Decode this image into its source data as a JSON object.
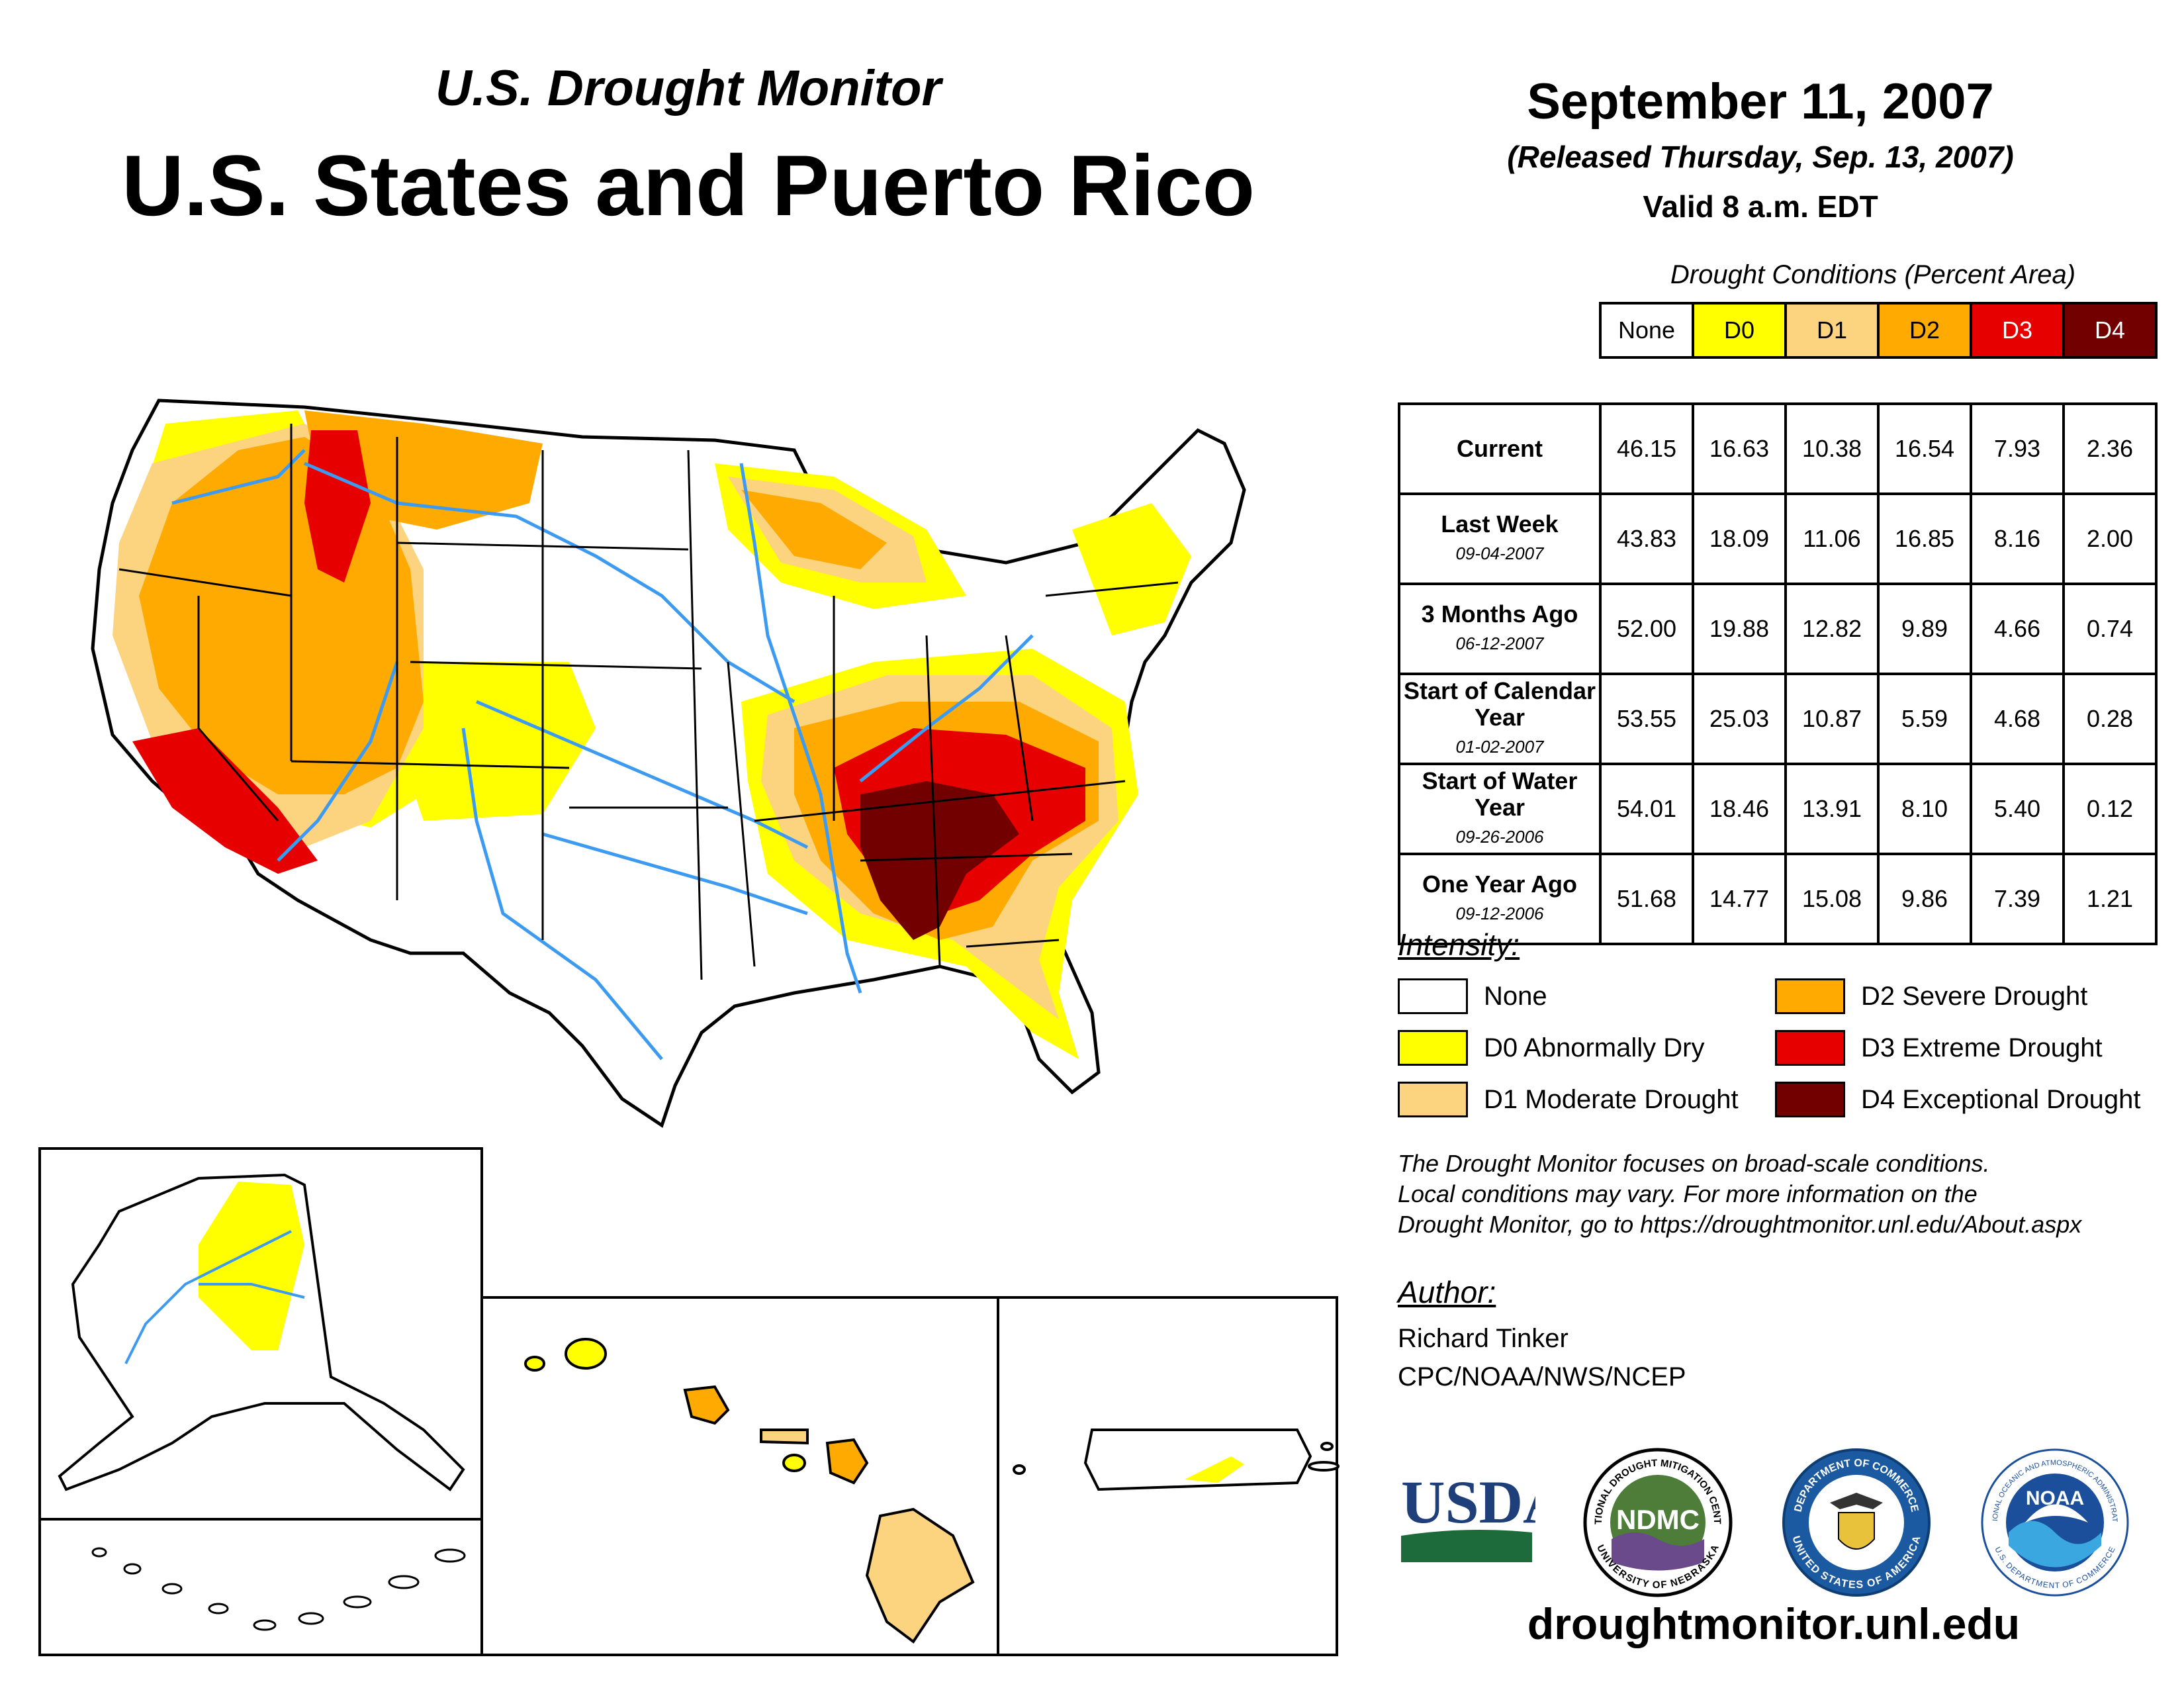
{
  "header": {
    "subtitle": "U.S. Drought Monitor",
    "title": "U.S. States and Puerto Rico",
    "date": "September 11, 2007",
    "released": "(Released Thursday, Sep. 13, 2007)",
    "valid": "Valid 8 a.m. EDT"
  },
  "table": {
    "caption": "Drought Conditions (Percent Area)",
    "columns": [
      "None",
      "D0",
      "D1",
      "D2",
      "D3",
      "D4"
    ],
    "column_colors": [
      "#ffffff",
      "#ffff00",
      "#fcd37f",
      "#ffaa00",
      "#e60000",
      "#730000"
    ],
    "rows": [
      {
        "label": "Current",
        "date": "",
        "values": [
          "46.15",
          "16.63",
          "10.38",
          "16.54",
          "7.93",
          "2.36"
        ]
      },
      {
        "label": "Last Week",
        "date": "09-04-2007",
        "values": [
          "43.83",
          "18.09",
          "11.06",
          "16.85",
          "8.16",
          "2.00"
        ]
      },
      {
        "label": "3 Months Ago",
        "date": "06-12-2007",
        "values": [
          "52.00",
          "19.88",
          "12.82",
          "9.89",
          "4.66",
          "0.74"
        ]
      },
      {
        "label": "Start of Calendar Year",
        "date": "01-02-2007",
        "values": [
          "53.55",
          "25.03",
          "10.87",
          "5.59",
          "4.68",
          "0.28"
        ]
      },
      {
        "label": "Start of Water Year",
        "date": "09-26-2006",
        "values": [
          "54.01",
          "18.46",
          "13.91",
          "8.10",
          "5.40",
          "0.12"
        ]
      },
      {
        "label": "One Year Ago",
        "date": "09-12-2006",
        "values": [
          "51.68",
          "14.77",
          "15.08",
          "9.86",
          "7.39",
          "1.21"
        ]
      }
    ]
  },
  "legend": {
    "title": "Intensity:",
    "items": [
      {
        "label": "None",
        "color": "#ffffff"
      },
      {
        "label": "D0 Abnormally Dry",
        "color": "#ffff00"
      },
      {
        "label": "D1 Moderate Drought",
        "color": "#fcd37f"
      },
      {
        "label": "D2 Severe Drought",
        "color": "#ffaa00"
      },
      {
        "label": "D3 Extreme Drought",
        "color": "#e60000"
      },
      {
        "label": "D4 Exceptional Drought",
        "color": "#730000"
      }
    ]
  },
  "note": {
    "line1": "The Drought Monitor focuses on broad-scale conditions.",
    "line2": "Local conditions may vary. For more information on the",
    "line3": "Drought Monitor, go to https://droughtmonitor.unl.edu/About.aspx"
  },
  "author": {
    "title": "Author:",
    "name": "Richard Tinker",
    "org": "CPC/NOAA/NWS/NCEP"
  },
  "logos": {
    "usda": "USDA",
    "ndmc": "NDMC",
    "ndmc_ring_top": "NATIONAL DROUGHT MITIGATION CENTER",
    "ndmc_ring_bottom": "UNIVERSITY OF NEBRASKA",
    "doc_ring_top": "DEPARTMENT OF COMMERCE",
    "doc_ring_bottom": "UNITED STATES OF AMERICA",
    "noaa": "NOAA",
    "noaa_ring_top": "NATIONAL OCEANIC AND ATMOSPHERIC ADMINISTRATION",
    "noaa_ring_bottom": "U.S. DEPARTMENT OF COMMERCE"
  },
  "footer": {
    "site": "droughtmonitor.unl.edu"
  },
  "map_colors": {
    "none": "#ffffff",
    "d0": "#ffff00",
    "d1": "#fcd37f",
    "d2": "#ffaa00",
    "d3": "#e60000",
    "d4": "#730000",
    "river": "#3c9bf0",
    "border": "#000000"
  }
}
